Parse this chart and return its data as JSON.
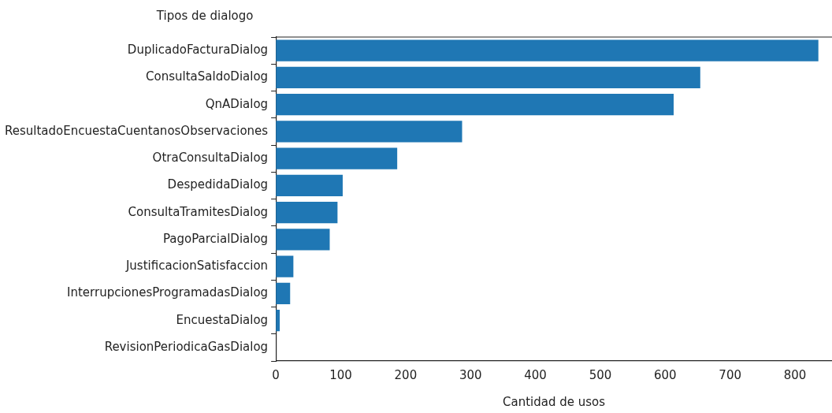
{
  "chart_data": {
    "type": "bar",
    "orientation": "horizontal",
    "xlabel": "Cantidad de usos",
    "ylabel": "Tipos de dialogo",
    "categories": [
      "DuplicadoFacturaDialog",
      "ConsultaSaldoDialog",
      "QnADialog",
      "ResultadoEncuestaCuentanosObservaciones",
      "OtraConsultaDialog",
      "DespedidaDialog",
      "ConsultaTramitesDialog",
      "PagoParcialDialog",
      "JustificacionSatisfaccion",
      "InterrupcionesProgramadasDialog",
      "EncuestaDialog",
      "RevisionPeriodicaGasDialog"
    ],
    "values": [
      836,
      654,
      613,
      287,
      187,
      103,
      95,
      83,
      27,
      22,
      6,
      null
    ],
    "color": "#1f77b4",
    "xlim": [
      0,
      857
    ],
    "xticks": [
      0,
      100,
      200,
      300,
      400,
      500,
      600,
      700,
      800
    ],
    "grid": false,
    "legend": false
  }
}
